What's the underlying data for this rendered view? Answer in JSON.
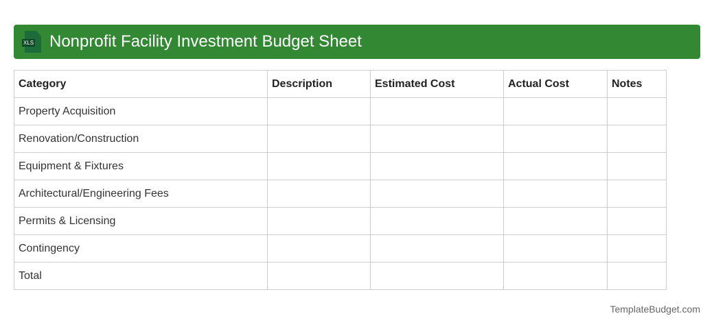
{
  "header": {
    "title": "Nonprofit Facility Investment Budget Sheet",
    "icon": "xls-file-icon",
    "icon_label": "XLS",
    "color": "#328833"
  },
  "table": {
    "columns": [
      "Category",
      "Description",
      "Estimated Cost",
      "Actual Cost",
      "Notes"
    ],
    "rows": [
      "Property Acquisition",
      "Renovation/Construction",
      "Equipment & Fixtures",
      "Architectural/Engineering Fees",
      "Permits & Licensing",
      "Contingency",
      "Total"
    ]
  },
  "footer": {
    "brand": "TemplateBudget.com"
  }
}
